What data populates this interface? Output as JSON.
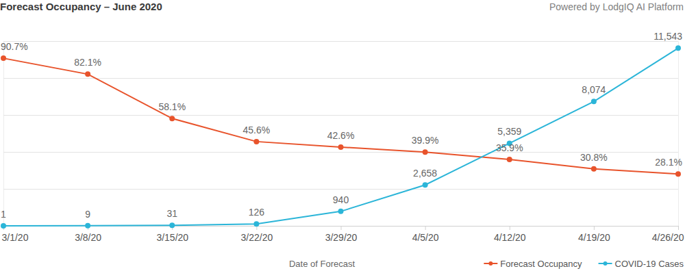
{
  "chart_data": {
    "type": "line",
    "title": "Forecast Occupancy – June 2020",
    "subtitle": "Powered by LodgIQ AI Platform",
    "xlabel": "Date of Forecast",
    "categories": [
      "3/1/20",
      "3/8/20",
      "3/15/20",
      "3/22/20",
      "3/29/20",
      "4/5/20",
      "4/12/20",
      "4/19/20",
      "4/26/20"
    ],
    "series": [
      {
        "name": "Forecast Occupancy",
        "color": "#e8532b",
        "marker": "circle",
        "line_style": "solid",
        "values": [
          90.7,
          82.1,
          58.1,
          45.6,
          42.6,
          39.9,
          35.9,
          30.8,
          28.1
        ],
        "value_labels": [
          "90.7%",
          "82.1%",
          "58.1%",
          "45.6%",
          "42.6%",
          "39.9%",
          "35.9%",
          "30.8%",
          "28.1%"
        ]
      },
      {
        "name": "COVID-19 Cases",
        "color": "#2bb5d8",
        "marker": "circle",
        "line_style": "solid",
        "axis": "y2",
        "values": [
          1,
          9,
          31,
          126,
          940,
          2658,
          5359,
          8074,
          11543
        ],
        "value_labels": [
          "1",
          "9",
          "31",
          "126",
          "940",
          "2,658",
          "5,359",
          "8,074",
          "11,543"
        ]
      }
    ],
    "ylim": [
      0,
      100
    ],
    "yticks": [
      0,
      20,
      40,
      60,
      80,
      100
    ],
    "y2lim": [
      0,
      12000
    ],
    "y2ticks": [
      0,
      2400,
      4800,
      7200,
      9600,
      12000
    ],
    "grid": true,
    "legend": "bottom-right",
    "data_labels": true,
    "tick_labels": "x"
  }
}
